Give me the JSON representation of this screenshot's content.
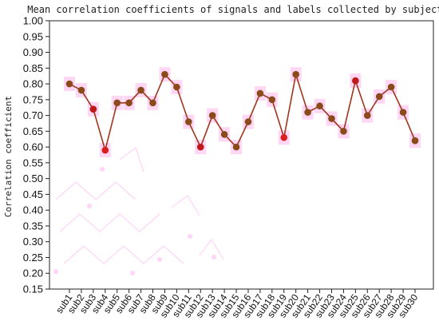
{
  "chart_data": {
    "type": "line",
    "title": "Mean correlation coefficients of signals and labels collected by subjects",
    "xlabel": "",
    "ylabel": "Correlation coefficient",
    "ylim": [
      0.15,
      1.0
    ],
    "yticks": [
      "0.15",
      "0.20",
      "0.25",
      "0.30",
      "0.35",
      "0.40",
      "0.45",
      "0.50",
      "0.55",
      "0.60",
      "0.65",
      "0.70",
      "0.75",
      "0.80",
      "0.85",
      "0.90",
      "0.95",
      "1.00"
    ],
    "grid": false,
    "legend": "none",
    "categories": [
      "sub1",
      "sub2",
      "sub3",
      "sub4",
      "sub5",
      "sub6",
      "sub7",
      "sub8",
      "sub9",
      "sub10",
      "sub11",
      "sub12",
      "sub13",
      "sub14",
      "sub15",
      "sub16",
      "sub17",
      "sub18",
      "sub19",
      "sub20",
      "sub21",
      "sub22",
      "sub23",
      "sub24",
      "sub25",
      "sub26",
      "sub27",
      "sub28",
      "sub29",
      "sub30"
    ],
    "values": [
      0.8,
      0.78,
      0.72,
      0.59,
      0.74,
      0.74,
      0.78,
      0.74,
      0.83,
      0.79,
      0.68,
      0.6,
      0.7,
      0.64,
      0.6,
      0.68,
      0.77,
      0.75,
      0.63,
      0.83,
      0.71,
      0.73,
      0.69,
      0.65,
      0.81,
      0.7,
      0.76,
      0.79,
      0.71,
      0.62
    ],
    "colors": {
      "line": "#a0351c",
      "marker": "#8a4a1a",
      "marker_low": "#d81e1e",
      "marker_high": "#c01818",
      "halo": "#ffc8f0"
    },
    "highlight_low_indices": [
      3,
      18
    ],
    "highlight_high_indices": [
      2,
      11,
      24
    ]
  }
}
